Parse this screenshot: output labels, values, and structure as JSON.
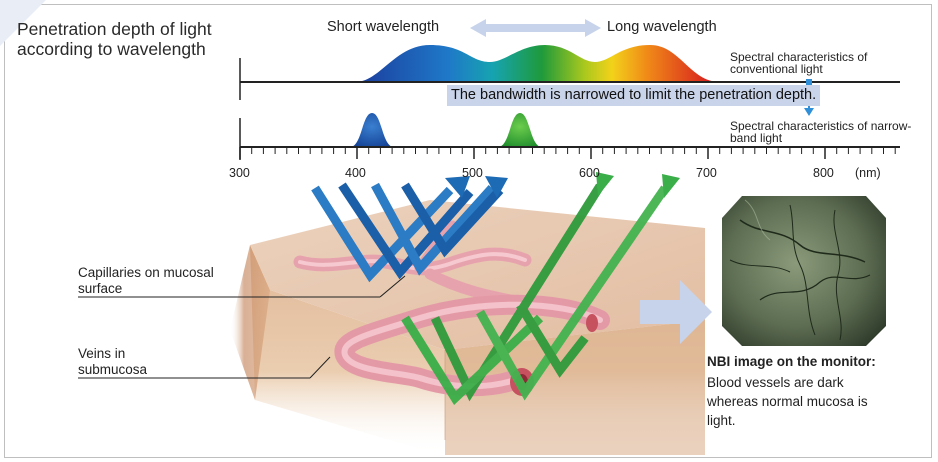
{
  "title": "Penetration depth of light according to wavelength",
  "header": {
    "short_wavelength": "Short wavelength",
    "long_wavelength": "Long wavelength"
  },
  "spectra": {
    "conventional_label": "Spectral characteristics of conventional light",
    "narrowband_label": "Spectral characteristics of narrow-band light",
    "note": "The bandwidth is narrowed to limit the penetration depth."
  },
  "axis": {
    "ticks": [
      "300",
      "400",
      "500",
      "600",
      "700",
      "800"
    ],
    "unit": "(nm)"
  },
  "tissue_labels": {
    "capillaries": "Capillaries on mucosal surface",
    "veins": "Veins in submucosa"
  },
  "nbi": {
    "heading": "NBI image on the monitor:",
    "description": "Blood vessels are dark whereas normal mucosa is light."
  },
  "colors": {
    "blue_light": "#1d5fa8",
    "green_light": "#2e9a3a",
    "note_banner": "#c9d4ea",
    "arrow_pale": "#c7d3ea",
    "tissue": "#e8c9b0",
    "vessel": "#e7a3ad"
  }
}
